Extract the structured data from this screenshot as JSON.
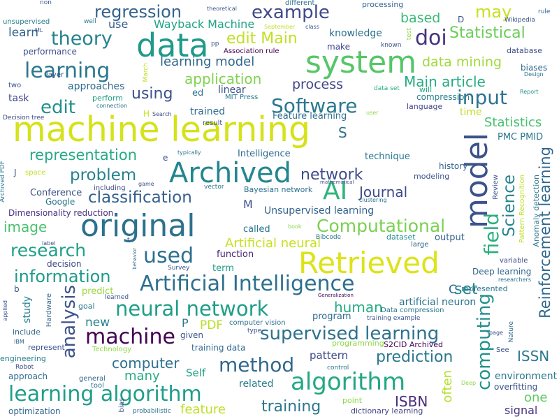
{
  "words": [
    {
      "text": "machine learning",
      "color": "#d5e21a"
    },
    {
      "text": "Archived",
      "color": "#24868e"
    },
    {
      "text": "original",
      "color": "#2d718e"
    },
    {
      "text": "system",
      "color": "#56c667"
    },
    {
      "text": "data",
      "color": "#1e9a8a"
    },
    {
      "text": "model",
      "color": "#3b528b"
    },
    {
      "text": "Retrieved",
      "color": "#dde318"
    },
    {
      "text": "example",
      "color": "#3e4a89"
    },
    {
      "text": "regression",
      "color": "#33638d"
    },
    {
      "text": "learning",
      "color": "#2a788e"
    },
    {
      "text": "theory",
      "color": "#25838e"
    },
    {
      "text": "edit Main",
      "color": "#c2df23"
    },
    {
      "text": "doi",
      "color": "#46327e"
    },
    {
      "text": "may",
      "color": "#c8e020"
    },
    {
      "text": "Statistical",
      "color": "#6ccd5a"
    },
    {
      "text": "based",
      "color": "#3aba76"
    },
    {
      "text": "Wayback Machine",
      "color": "#20a386"
    },
    {
      "text": "learn",
      "color": "#32648e"
    },
    {
      "text": "use",
      "color": "#365c8d"
    },
    {
      "text": "AI",
      "color": "#2fb47c"
    },
    {
      "text": "field",
      "color": "#29af7f"
    },
    {
      "text": "Software",
      "color": "#2a788e"
    },
    {
      "text": "input",
      "color": "#2c728e"
    },
    {
      "text": "edit",
      "color": "#21918c"
    },
    {
      "text": "application",
      "color": "#7fd34e"
    },
    {
      "text": "data mining",
      "color": "#a0da39"
    },
    {
      "text": "Main article",
      "color": "#25ab82"
    },
    {
      "text": "learning model",
      "color": "#31688e"
    },
    {
      "text": "using",
      "color": "#3b528b"
    },
    {
      "text": "process",
      "color": "#404688"
    },
    {
      "text": "Artificial Intelligence",
      "color": "#2d708e"
    },
    {
      "text": "neural network",
      "color": "#1f9e89"
    },
    {
      "text": "supervised learning",
      "color": "#2d718e"
    },
    {
      "text": "method",
      "color": "#31688e"
    },
    {
      "text": "algorithm",
      "color": "#22a884"
    },
    {
      "text": "learning algorithm",
      "color": "#1f9e89"
    },
    {
      "text": "research",
      "color": "#1fa088"
    },
    {
      "text": "classification",
      "color": "#355f8d"
    },
    {
      "text": "Computational",
      "color": "#7ad151"
    },
    {
      "text": "machine",
      "color": "#440154"
    },
    {
      "text": "analysis",
      "color": "#3b528b"
    },
    {
      "text": "computing",
      "color": "#21918c"
    },
    {
      "text": "Science",
      "color": "#25848e"
    },
    {
      "text": "problem",
      "color": "#26828e"
    },
    {
      "text": "representation",
      "color": "#25ab82"
    },
    {
      "text": "network",
      "color": "#3e4c8a"
    },
    {
      "text": "Statistics",
      "color": "#46c06f"
    },
    {
      "text": "information",
      "color": "#1f9a8a"
    },
    {
      "text": "used",
      "color": "#2d708e"
    },
    {
      "text": "image",
      "color": "#4ac16d"
    },
    {
      "text": "computer",
      "color": "#2c728e"
    },
    {
      "text": "training",
      "color": "#2a788e"
    },
    {
      "text": "prediction",
      "color": "#2a788e"
    },
    {
      "text": "Journal",
      "color": "#3e4989"
    },
    {
      "text": "human",
      "color": "#25ab82"
    },
    {
      "text": "Reinforcement learning",
      "color": "#31688e"
    },
    {
      "text": "Artificial neural",
      "color": "#c8e020"
    },
    {
      "text": "ISSN",
      "color": "#2a788e"
    },
    {
      "text": "ISBN",
      "color": "#472c7a"
    },
    {
      "text": "set",
      "color": "#25858e"
    },
    {
      "text": "feature",
      "color": "#bddf26"
    },
    {
      "text": "many",
      "color": "#27ad81"
    },
    {
      "text": "new",
      "color": "#26828e"
    },
    {
      "text": "PDF",
      "color": "#bade28"
    },
    {
      "text": "often",
      "color": "#b5de2b"
    },
    {
      "text": "one",
      "color": "#5ec962"
    },
    {
      "text": "signal",
      "color": "#46337f"
    },
    {
      "text": "pattern",
      "color": "#3e4a89"
    },
    {
      "text": "trained",
      "color": "#2e6e8e"
    },
    {
      "text": "knowledge",
      "color": "#2d708e"
    },
    {
      "text": "make",
      "color": "#404688"
    },
    {
      "text": "processing",
      "color": "#33638d"
    },
    {
      "text": "performance",
      "color": "#3e4c8a"
    },
    {
      "text": "task",
      "color": "#3f4788"
    },
    {
      "text": "approaches",
      "color": "#2f6c8e"
    },
    {
      "text": "linear",
      "color": "#3b528b"
    },
    {
      "text": "Feature learning",
      "color": "#2e6f8e"
    },
    {
      "text": "compression",
      "color": "#277f8e"
    },
    {
      "text": "language",
      "color": "#424086"
    },
    {
      "text": "time",
      "color": "#c0df25"
    },
    {
      "text": "technique",
      "color": "#2a788e"
    },
    {
      "text": "history",
      "color": "#33638d"
    },
    {
      "text": "Intelligence",
      "color": "#2f6b8e"
    },
    {
      "text": "Conference",
      "color": "#3b528b"
    },
    {
      "text": "Google",
      "color": "#2a788e"
    },
    {
      "text": "Dimensionality reduction",
      "color": "#46307e"
    },
    {
      "text": "Unsupervised learning",
      "color": "#33638d"
    },
    {
      "text": "Bayesian network",
      "color": "#2c728e"
    },
    {
      "text": "modeling",
      "color": "#3b528b"
    },
    {
      "text": "called",
      "color": "#2a768e"
    },
    {
      "text": "output",
      "color": "#34618d"
    },
    {
      "text": "dataset",
      "color": "#21918c"
    },
    {
      "text": "function",
      "color": "#482878"
    },
    {
      "text": "term",
      "color": "#1f9f88"
    },
    {
      "text": "decision",
      "color": "#3e4989"
    },
    {
      "text": "Deep learning",
      "color": "#31668e"
    },
    {
      "text": "represented",
      "color": "#2a788e"
    },
    {
      "text": "artificial neuron",
      "color": "#2b748e"
    },
    {
      "text": "predict",
      "color": "#97d83f"
    },
    {
      "text": "study",
      "color": "#27808e"
    },
    {
      "text": "program",
      "color": "#2e6d8e"
    },
    {
      "text": "given",
      "color": "#3b528b"
    },
    {
      "text": "training data",
      "color": "#31688e"
    },
    {
      "text": "Self",
      "color": "#20a386"
    },
    {
      "text": "related",
      "color": "#287d8e"
    },
    {
      "text": "dictionary learning",
      "color": "#414487"
    },
    {
      "text": "overfitting",
      "color": "#3b528b"
    },
    {
      "text": "environment",
      "color": "#2a788e"
    },
    {
      "text": "optimization",
      "color": "#31688e"
    },
    {
      "text": "approach",
      "color": "#2e6e8e"
    },
    {
      "text": "engineering",
      "color": "#277f8e"
    },
    {
      "text": "Wikipedia",
      "color": "#3b528b"
    },
    {
      "text": "rule",
      "color": "#33638d"
    },
    {
      "text": "database",
      "color": "#3e4c8a"
    },
    {
      "text": "biases",
      "color": "#2f6b8e"
    },
    {
      "text": "Association rule",
      "color": "#440154"
    },
    {
      "text": "mathematical",
      "color": "#3b528b"
    },
    {
      "text": "clustering",
      "color": "#2c728e"
    },
    {
      "text": "Decision tree",
      "color": "#3e4989"
    },
    {
      "text": "unsupervised",
      "color": "#277f8e"
    },
    {
      "text": "different",
      "color": "#2d708e"
    },
    {
      "text": "theoretical",
      "color": "#38588c"
    },
    {
      "text": "layer",
      "color": "#3b528b"
    },
    {
      "text": "MIT Press",
      "color": "#2a788e"
    },
    {
      "text": "perform",
      "color": "#1fa088"
    },
    {
      "text": "connection",
      "color": "#2c728e"
    },
    {
      "text": "Search",
      "color": "#3e4c8a"
    },
    {
      "text": "result",
      "color": "#3b528b"
    },
    {
      "text": "data set",
      "color": "#25ab82"
    },
    {
      "text": "will",
      "color": "#25ab82"
    },
    {
      "text": "two",
      "color": "#3b528b"
    },
    {
      "text": "label",
      "color": "#3b528b"
    },
    {
      "text": "Bibcode",
      "color": "#2a788e"
    },
    {
      "text": "large",
      "color": "#31688e"
    },
    {
      "text": "variable",
      "color": "#3e4c8a"
    },
    {
      "text": "researchers",
      "color": "#2c728e"
    },
    {
      "text": "Generalization",
      "color": "#440154"
    },
    {
      "text": "Data compression",
      "color": "#2a788e"
    },
    {
      "text": "training example",
      "color": "#3b528b"
    },
    {
      "text": "computer vision",
      "color": "#2c728e"
    },
    {
      "text": "Hardware",
      "color": "#33638d"
    },
    {
      "text": "learned",
      "color": "#3b528b"
    },
    {
      "text": "goal",
      "color": "#2a788e"
    },
    {
      "text": "include",
      "color": "#31688e"
    },
    {
      "text": "represent",
      "color": "#3b528b"
    },
    {
      "text": "Robot",
      "color": "#3e4989"
    },
    {
      "text": "Technology",
      "color": "#8fd744"
    },
    {
      "text": "Survey",
      "color": "#3b528b"
    },
    {
      "text": "general",
      "color": "#31688e"
    },
    {
      "text": "tool",
      "color": "#2c728e"
    },
    {
      "text": "control",
      "color": "#2a788e"
    },
    {
      "text": "point",
      "color": "#8fd744"
    },
    {
      "text": "probabilistic",
      "color": "#2c728e"
    },
    {
      "text": "bias",
      "color": "#3b528b"
    },
    {
      "text": "Pattern Recognition",
      "color": "#c0df25"
    },
    {
      "text": "Anomaly detection",
      "color": "#2a788e"
    },
    {
      "text": "Review",
      "color": "#3b528b"
    },
    {
      "text": "Nature",
      "color": "#31688e"
    },
    {
      "text": "page",
      "color": "#3b528b"
    },
    {
      "text": "See",
      "color": "#3b528b"
    },
    {
      "text": "Deep",
      "color": "#8fd744"
    },
    {
      "text": "vector",
      "color": "#2a788e"
    },
    {
      "text": "including",
      "color": "#3e4c8a"
    },
    {
      "text": "game",
      "color": "#3b528b"
    },
    {
      "text": "typically",
      "color": "#2c728e"
    },
    {
      "text": "behavior",
      "color": "#33638d"
    },
    {
      "text": "space",
      "color": "#c0df25"
    },
    {
      "text": "March",
      "color": "#c0df25"
    },
    {
      "text": "September",
      "color": "#c0df25"
    },
    {
      "text": "class",
      "color": "#3b528b"
    },
    {
      "text": "known",
      "color": "#3b528b"
    },
    {
      "text": "test",
      "color": "#8fd744"
    },
    {
      "text": "Report",
      "color": "#21918c"
    },
    {
      "text": "Design",
      "color": "#2c728e"
    },
    {
      "text": "well",
      "color": "#2a788e"
    },
    {
      "text": "non",
      "color": "#3b528b"
    },
    {
      "text": "ML",
      "color": "#3b528b"
    },
    {
      "text": "pp",
      "color": "#3b528b"
    },
    {
      "text": "ed",
      "color": "#2c728e"
    },
    {
      "text": "PMC PMID",
      "color": "#2a788e"
    },
    {
      "text": "S2CID Archived",
      "color": "#440154"
    },
    {
      "text": "IBM",
      "color": "#31688e"
    },
    {
      "text": "Archived PDF",
      "color": "#2a788e"
    },
    {
      "text": "applied",
      "color": "#3b528b"
    },
    {
      "text": "user",
      "color": "#8fd744"
    },
    {
      "text": "book",
      "color": "#8fd744"
    },
    {
      "text": "type",
      "color": "#3b528b"
    },
    {
      "text": "programming",
      "color": "#8fd744"
    },
    {
      "text": "M",
      "color": "#3b528b"
    },
    {
      "text": "S",
      "color": "#2c728e"
    },
    {
      "text": "C",
      "color": "#31688e"
    },
    {
      "text": "P",
      "color": "#2a788e"
    },
    {
      "text": "b",
      "color": "#3b528b"
    },
    {
      "text": "J",
      "color": "#3b528b"
    },
    {
      "text": "e",
      "color": "#3b528b"
    },
    {
      "text": "H",
      "color": "#c8e020"
    },
    {
      "text": "D",
      "color": "#3b528b"
    },
    {
      "text": "t",
      "color": "#3b528b"
    }
  ]
}
